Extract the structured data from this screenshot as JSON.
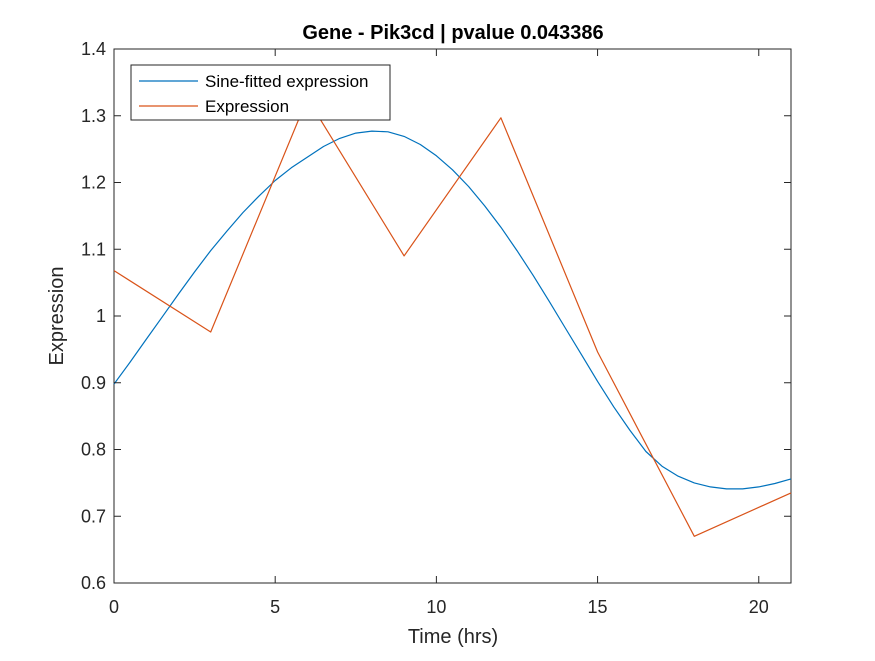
{
  "chart_data": {
    "type": "line",
    "title": "Gene - Pik3cd | pvalue 0.043386",
    "xlabel": "Time (hrs)",
    "ylabel": "Expression",
    "xlim": [
      0,
      21
    ],
    "ylim": [
      0.6,
      1.4
    ],
    "xticks": [
      0,
      5,
      10,
      15,
      20
    ],
    "xtick_labels": [
      "0",
      "5",
      "10",
      "15",
      "20"
    ],
    "yticks": [
      0.6,
      0.7,
      0.8,
      0.9,
      1.0,
      1.1,
      1.2,
      1.3,
      1.4
    ],
    "ytick_labels": [
      "0.6",
      "0.7",
      "0.8",
      "0.9",
      "1",
      "1.1",
      "1.2",
      "1.3",
      "1.4"
    ],
    "grid": false,
    "legend_position": "top-left",
    "series": [
      {
        "name": "Sine-fitted expression",
        "color": "#0072BD",
        "style": "smooth",
        "x": [
          0,
          0.5,
          1,
          1.5,
          2,
          2.5,
          3,
          3.5,
          4,
          4.5,
          5,
          5.5,
          6,
          6.5,
          7,
          7.5,
          8,
          8.5,
          9,
          9.5,
          10,
          10.5,
          11,
          11.5,
          12,
          12.5,
          13,
          13.5,
          14,
          14.5,
          15,
          15.5,
          16,
          16.5,
          17,
          17.5,
          18,
          18.5,
          19,
          19.5,
          20,
          20.5,
          21
        ],
        "y": [
          0.898,
          0.931,
          0.965,
          0.999,
          1.033,
          1.066,
          1.098,
          1.127,
          1.155,
          1.18,
          1.203,
          1.222,
          1.238,
          1.254,
          1.266,
          1.274,
          1.277,
          1.276,
          1.269,
          1.257,
          1.24,
          1.219,
          1.194,
          1.165,
          1.133,
          1.098,
          1.061,
          1.022,
          0.982,
          0.942,
          0.902,
          0.864,
          0.829,
          0.797,
          0.775,
          0.76,
          0.75,
          0.744,
          0.741,
          0.741,
          0.744,
          0.749,
          0.756
        ]
      },
      {
        "name": "Expression",
        "color": "#D95319",
        "style": "linear",
        "x": [
          0,
          3,
          6,
          9,
          12,
          15,
          18,
          21
        ],
        "y": [
          1.068,
          0.976,
          1.326,
          1.09,
          1.297,
          0.946,
          0.67,
          0.735
        ]
      }
    ]
  }
}
